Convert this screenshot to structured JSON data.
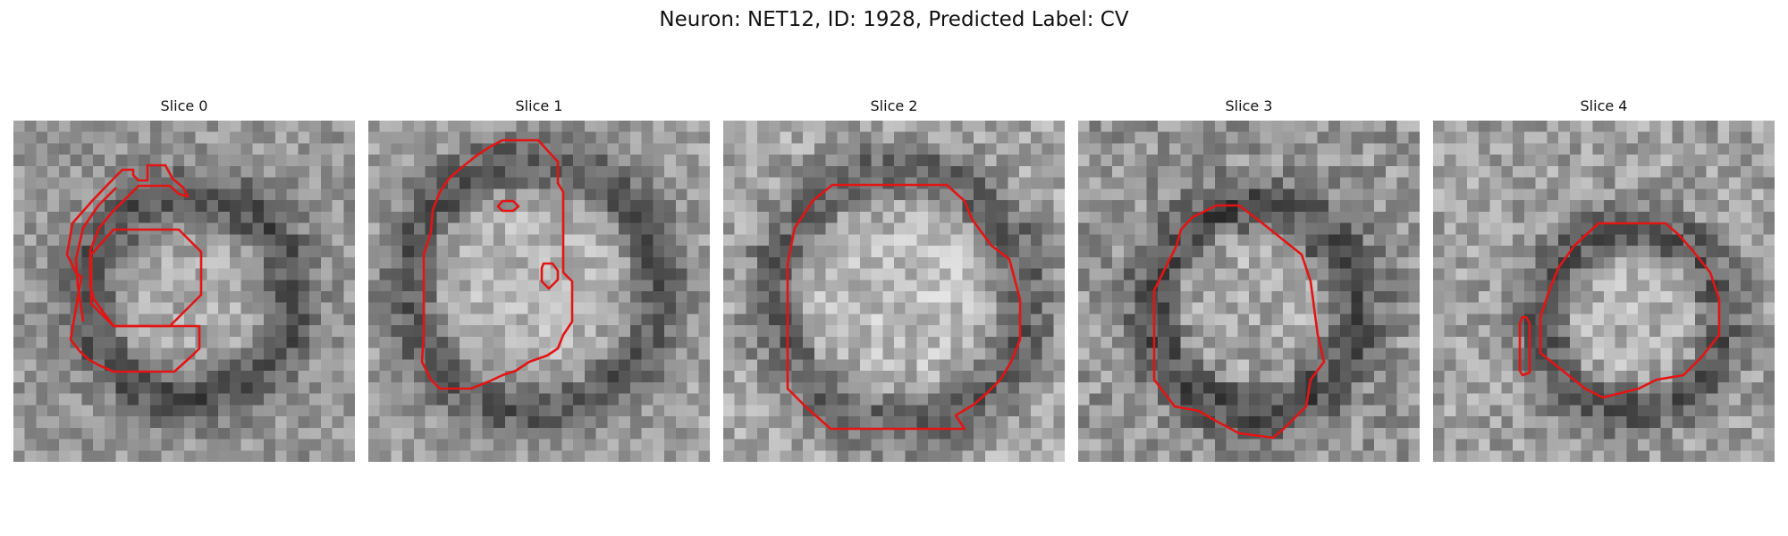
{
  "figure": {
    "title": "Neuron: NET12, ID: 1928, Predicted Label: CV"
  },
  "panels": [
    {
      "title": "Slice 0",
      "image": "grayscale-microscopy-slice",
      "contour_color": "#e31414"
    },
    {
      "title": "Slice 1",
      "image": "grayscale-microscopy-slice",
      "contour_color": "#e31414"
    },
    {
      "title": "Slice 2",
      "image": "grayscale-microscopy-slice",
      "contour_color": "#e31414"
    },
    {
      "title": "Slice 3",
      "image": "grayscale-microscopy-slice",
      "contour_color": "#e31414"
    },
    {
      "title": "Slice 4",
      "image": "grayscale-microscopy-slice",
      "contour_color": "#e31414"
    }
  ]
}
